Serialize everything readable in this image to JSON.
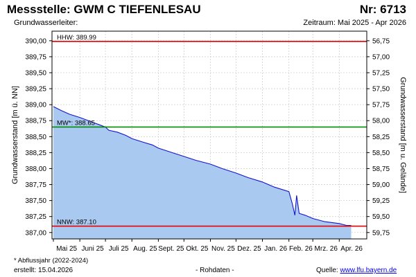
{
  "header": {
    "title": "Messstelle: GWM C TIEFENLESAU",
    "number": "Nr: 6713",
    "aquifer": "Grundwasserleiter:",
    "period": "Zeitraum: Mai 2025 - Apr 2026"
  },
  "footer": {
    "footnote": "* Abflussjahr (2022-2024)",
    "created": "erstellt:  15.04.2026",
    "rawdata": "- Rohdaten -",
    "source_prefix": "Quelle: ",
    "source_link": "www.lfu.bayern.de"
  },
  "chart_data": {
    "type": "area",
    "ylabel_left": "Grundwasserstand [m ü. NN]",
    "ylabel_right": "Grundwasserstand [m u. Gelände]",
    "ylim": [
      386.9,
      390.15
    ],
    "y_ticks_left": [
      "390,00",
      "389,75",
      "389,50",
      "389,25",
      "389,00",
      "388,75",
      "388,50",
      "388,25",
      "388,00",
      "387,75",
      "387,50",
      "387,25",
      "387,00"
    ],
    "y_ticks_right": [
      "56,75",
      "57,00",
      "57,25",
      "57,50",
      "57,75",
      "58,00",
      "58,25",
      "58,50",
      "58,75",
      "59,00",
      "59,25",
      "59,50",
      "59,75"
    ],
    "x_months": [
      "Mai 25",
      "Juni 25",
      "Juli 25",
      "Aug. 25",
      "Sept. 25",
      "Okt. 25",
      "Nov. 25",
      "Dez. 25",
      "Jan. 26",
      "Feb. 26",
      "Mrz. 26",
      "Apr. 26"
    ],
    "grid": true,
    "colors": {
      "area": "#a9c9f1",
      "line": "#1414cc",
      "hhw": "#e60000",
      "mw": "#008c00",
      "nnw": "#e60000"
    },
    "reference_lines": [
      {
        "label": "HHW: 389.99",
        "value": 389.99,
        "color": "#e60000"
      },
      {
        "label": "MW*: 388.65",
        "value": 388.65,
        "color": "#008c00"
      },
      {
        "label": "NNW: 387.10",
        "value": 387.1,
        "color": "#e60000"
      }
    ],
    "series": [
      {
        "x": [
          "2025-05-01",
          "2025-05-10",
          "2025-05-20",
          "2025-06-01",
          "2025-06-15",
          "2025-06-25",
          "2025-07-01",
          "2025-07-05",
          "2025-07-15",
          "2025-07-25",
          "2025-08-01",
          "2025-08-15",
          "2025-08-25",
          "2025-09-01",
          "2025-09-15",
          "2025-10-01",
          "2025-10-15",
          "2025-11-01",
          "2025-11-15",
          "2025-12-01",
          "2025-12-15",
          "2026-01-01",
          "2026-01-15",
          "2026-02-01",
          "2026-02-05",
          "2026-02-08",
          "2026-02-10",
          "2026-02-13",
          "2026-02-20",
          "2026-03-01",
          "2026-03-15",
          "2026-04-01",
          "2026-04-10",
          "2026-04-15"
        ],
        "values": [
          388.97,
          388.91,
          388.85,
          388.8,
          388.73,
          388.68,
          388.65,
          388.6,
          388.57,
          388.52,
          388.47,
          388.41,
          388.37,
          388.32,
          388.26,
          388.19,
          388.13,
          388.07,
          388.0,
          387.93,
          387.86,
          387.79,
          387.71,
          387.64,
          387.45,
          387.27,
          387.58,
          387.3,
          387.27,
          387.22,
          387.17,
          387.14,
          387.11,
          387.11
        ]
      }
    ]
  }
}
